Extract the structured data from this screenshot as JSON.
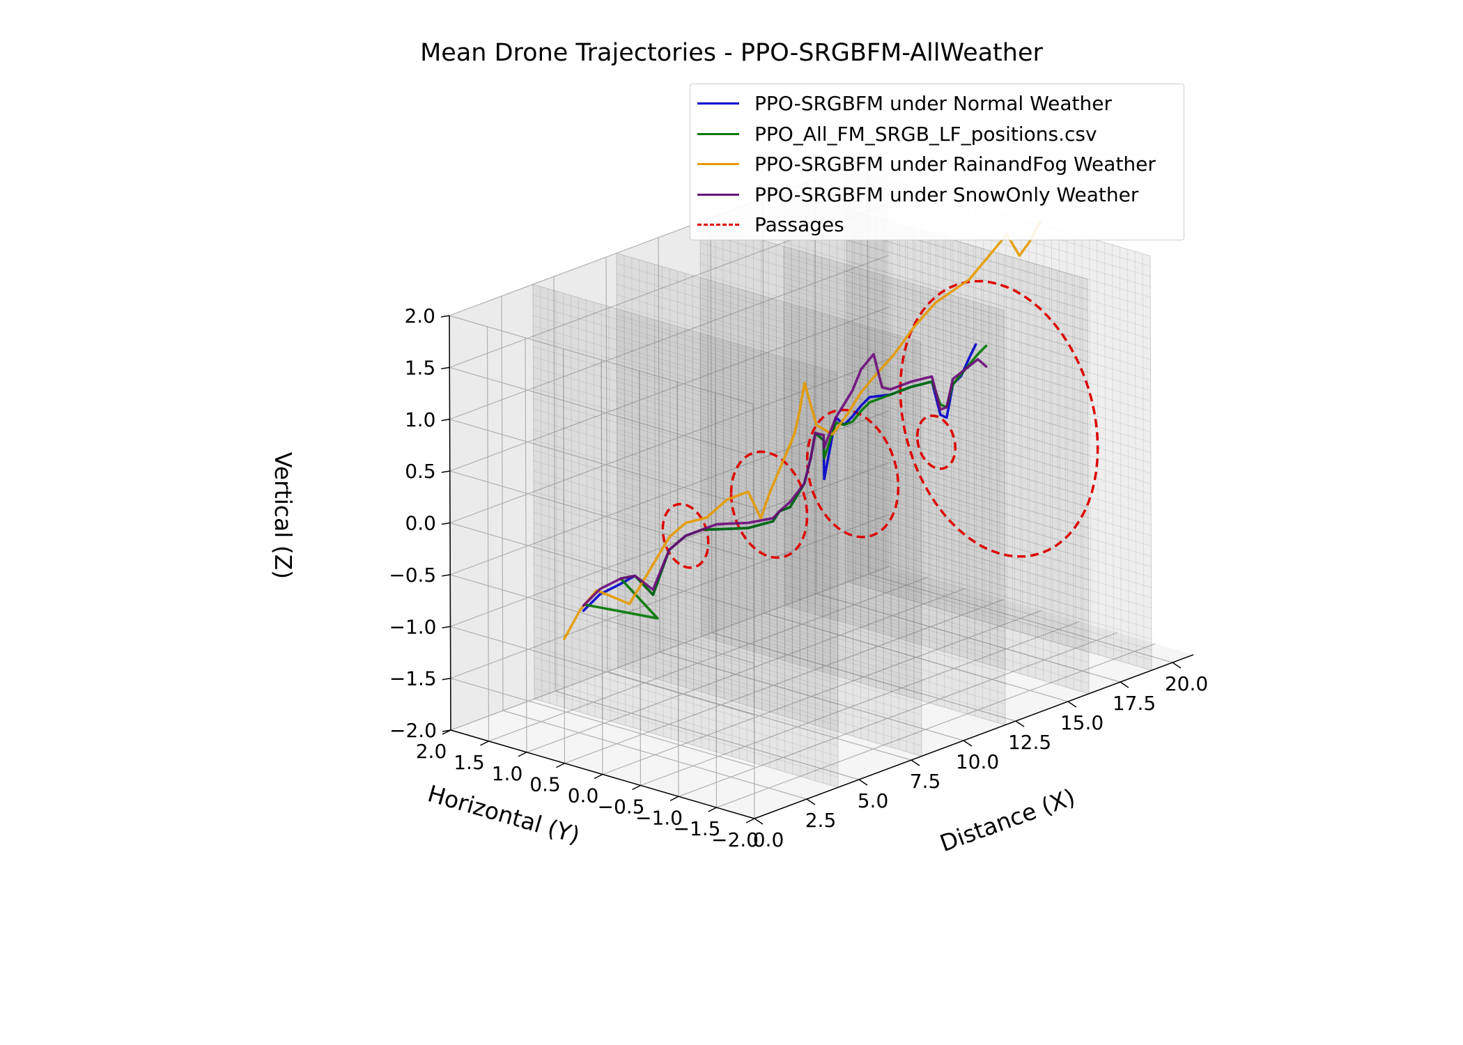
{
  "title": "Mean Drone Trajectories - PPO-SRGBFM-AllWeather",
  "chart_data": {
    "type": "line",
    "projection": "3d",
    "title": "Mean Drone Trajectories - PPO-SRGBFM-AllWeather",
    "xlabel": "Distance (X)",
    "ylabel": "Horizontal (Y)",
    "zlabel": "Vertical (Z)",
    "xlim": [
      0,
      21
    ],
    "ylim": [
      -2,
      2
    ],
    "zlim": [
      -2,
      2
    ],
    "xticks": [
      "0.0",
      "2.5",
      "5.0",
      "7.5",
      "10.0",
      "12.5",
      "15.0",
      "17.5",
      "20.0"
    ],
    "yticks": [
      "2.0",
      "1.5",
      "1.0",
      "0.5",
      "0.0",
      "−0.5",
      "−1.0",
      "−1.5",
      "−2.0"
    ],
    "zticks": [
      "−2.0",
      "−1.5",
      "−1.0",
      "−0.5",
      "0.0",
      "0.5",
      "1.0",
      "1.5",
      "2.0"
    ],
    "grid": true,
    "legend_position": "top-right",
    "walls_x": [
      4,
      8,
      12,
      16,
      19
    ],
    "series": [
      {
        "name": "PPO-SRGBFM  under Normal Weather",
        "color": "#0000cc",
        "x": [
          0.2,
          1.0,
          1.8,
          2.3,
          2.8,
          3.4,
          4.0,
          4.8,
          5.5,
          7.0,
          8.0,
          8.5,
          9.0,
          9.5,
          10.0,
          10.4,
          10.8,
          11.0,
          11.2,
          11.6,
          12.0,
          12.6,
          13.0,
          14.0,
          15.0,
          15.8,
          16.2,
          16.5,
          16.8,
          17.2,
          17.6,
          17.9
        ],
        "y": [
          0.3,
          0.3,
          0.25,
          0.2,
          0.1,
          0.05,
          0.0,
          0.0,
          0.0,
          0.0,
          -0.05,
          0.0,
          0.0,
          -0.05,
          0.0,
          0.05,
          0.05,
          0.1,
          0.0,
          0.0,
          0.0,
          0.05,
          0.05,
          0.05,
          0.05,
          0.0,
          0.0,
          0.0,
          0.0,
          0.0,
          0.0,
          0.0
        ],
        "z": [
          -0.5,
          -0.4,
          -0.35,
          -0.3,
          -0.5,
          -0.1,
          0.0,
          0.0,
          -0.05,
          -0.15,
          -0.15,
          -0.1,
          -0.1,
          0.1,
          0.3,
          0.5,
          0.4,
          0.0,
          0.6,
          0.5,
          0.55,
          0.6,
          0.65,
          0.6,
          0.6,
          0.6,
          0.25,
          0.2,
          0.5,
          0.55,
          0.7,
          0.8
        ]
      },
      {
        "name": "PPO_All_FM_SRGB_LF_positions.csv",
        "color": "#007700",
        "x": [
          0.3,
          1.2,
          1.8,
          2.3,
          2.8,
          3.4,
          4.0,
          4.8,
          5.5,
          7.0,
          8.0,
          8.5,
          9.0,
          9.5,
          10.0,
          10.4,
          10.8,
          11.0,
          11.2,
          11.6,
          12.0,
          12.6,
          13.0,
          14.0,
          15.0,
          15.8,
          16.2,
          16.5,
          16.8,
          17.4,
          18.0,
          18.4
        ],
        "y": [
          0.3,
          -0.4,
          0.25,
          0.2,
          0.1,
          0.05,
          0.0,
          0.0,
          0.0,
          0.0,
          -0.05,
          0.0,
          0.0,
          -0.05,
          0.0,
          0.05,
          0.05,
          0.1,
          0.0,
          0.0,
          0.0,
          0.05,
          0.05,
          0.05,
          0.05,
          0.0,
          0.0,
          0.0,
          0.0,
          0.0,
          0.0,
          0.0
        ],
        "z": [
          -0.45,
          -0.5,
          -0.3,
          -0.3,
          -0.5,
          -0.1,
          0.0,
          0.0,
          -0.05,
          -0.15,
          -0.15,
          -0.1,
          -0.1,
          0.1,
          0.3,
          0.5,
          0.4,
          0.2,
          0.55,
          0.5,
          0.5,
          0.55,
          0.6,
          0.6,
          0.6,
          0.6,
          0.35,
          0.3,
          0.5,
          0.6,
          0.7,
          0.75
        ]
      },
      {
        "name": "PPO-SRGBFM under RainandFog Weather",
        "color": "#e69a00",
        "x": [
          0.0,
          0.6,
          1.2,
          1.8,
          2.4,
          3.0,
          3.6,
          4.2,
          5.0,
          6.0,
          7.0,
          7.6,
          8.0,
          8.5,
          9.0,
          9.6,
          10.2,
          10.8,
          11.0,
          11.4,
          11.8,
          12.4,
          13.0,
          14.0,
          15.0,
          16.0,
          16.8,
          17.6,
          18.2,
          18.8,
          19.4,
          20.0,
          20.5,
          21.0
        ],
        "y": [
          0.5,
          0.45,
          0.4,
          0.35,
          0.3,
          0.2,
          0.1,
          0.05,
          0.0,
          0.0,
          0.0,
          0.0,
          0.0,
          0.0,
          0.0,
          0.1,
          0.2,
          0.3,
          0.2,
          0.1,
          0.0,
          0.0,
          0.0,
          0.0,
          0.0,
          0.0,
          0.0,
          0.0,
          0.0,
          0.0,
          0.0,
          0.0,
          0.0,
          0.0
        ],
        "z": [
          -0.8,
          -0.55,
          -0.4,
          -0.5,
          -0.6,
          -0.3,
          0.0,
          0.1,
          0.1,
          0.2,
          0.2,
          -0.1,
          0.1,
          0.3,
          0.5,
          0.55,
          0.7,
          0.9,
          0.5,
          0.4,
          0.6,
          0.75,
          0.85,
          1.0,
          1.2,
          1.35,
          1.4,
          1.45,
          1.55,
          1.65,
          1.75,
          1.5,
          1.6,
          1.75
        ]
      },
      {
        "name": "PPO-SRGBFM  under SnowOnly Weather",
        "color": "#6b0b7a",
        "x": [
          0.2,
          1.0,
          1.8,
          2.3,
          2.8,
          3.4,
          4.0,
          4.8,
          5.5,
          7.0,
          8.0,
          8.5,
          9.0,
          9.5,
          10.0,
          10.4,
          10.8,
          11.0,
          11.2,
          11.6,
          12.0,
          12.6,
          13.2,
          13.6,
          14.0,
          15.0,
          15.8,
          16.2,
          16.5,
          16.8,
          17.4,
          18.0,
          18.4
        ],
        "y": [
          0.3,
          0.3,
          0.25,
          0.2,
          0.1,
          0.05,
          0.0,
          0.0,
          0.0,
          0.0,
          -0.05,
          0.0,
          0.0,
          -0.05,
          0.0,
          0.05,
          0.05,
          0.1,
          0.0,
          0.0,
          0.0,
          0.05,
          0.05,
          0.05,
          0.05,
          0.05,
          0.0,
          0.0,
          0.0,
          0.0,
          0.0,
          0.0,
          0.0
        ],
        "z": [
          -0.45,
          -0.35,
          -0.3,
          -0.3,
          -0.45,
          -0.1,
          0.0,
          0.0,
          0.0,
          -0.1,
          -0.12,
          -0.1,
          -0.05,
          0.1,
          0.3,
          0.5,
          0.45,
          0.3,
          0.6,
          0.7,
          0.8,
          0.95,
          1.05,
          0.7,
          0.65,
          0.65,
          0.65,
          0.3,
          0.3,
          0.55,
          0.6,
          0.65,
          0.55
        ]
      }
    ],
    "passages": {
      "name": "Passages",
      "color": "#dd0000",
      "circles": [
        {
          "x": 4,
          "y": 0,
          "z": 0,
          "r": 0.3
        },
        {
          "x": 8,
          "y": 0,
          "z": 0,
          "r": 0.5
        },
        {
          "x": 12,
          "y": 0,
          "z": 0,
          "r": 0.6
        },
        {
          "x": 16,
          "y": 0,
          "z": 0,
          "r": 0.25
        },
        {
          "x": 19,
          "y": 0,
          "z": 0,
          "r": 1.3
        }
      ]
    }
  }
}
